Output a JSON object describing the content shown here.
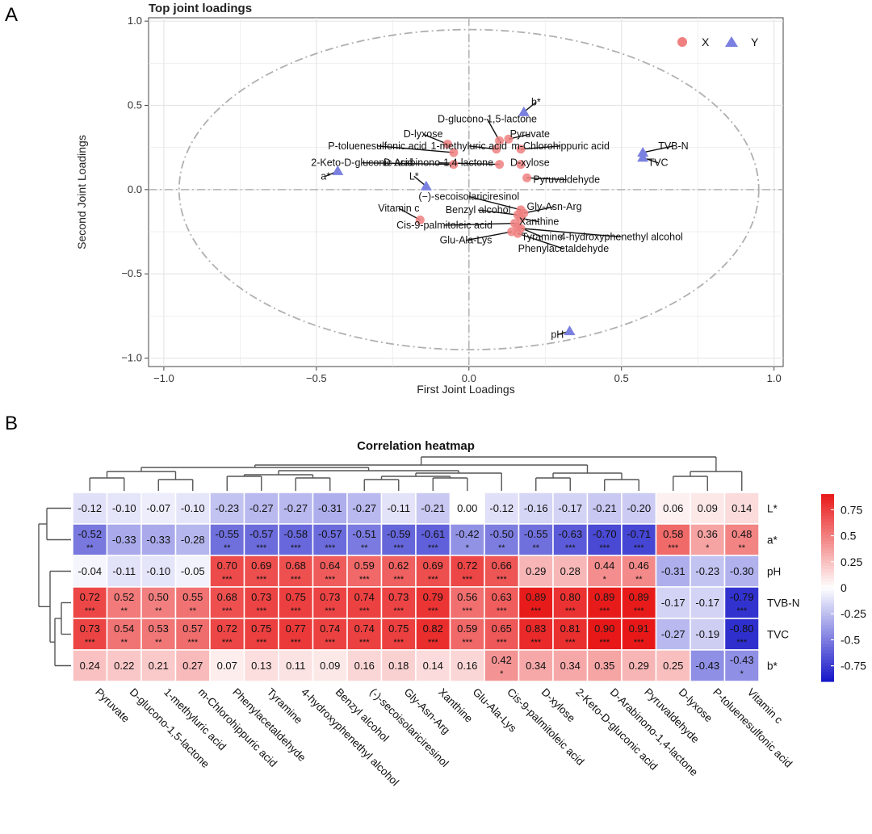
{
  "panels": {
    "a_label": "A",
    "b_label": "B"
  },
  "chart_data": [
    {
      "type": "scatter",
      "title": "Top joint loadings",
      "xlabel": "First Joint Loadings",
      "ylabel": "Second Joint Loadings",
      "xlim": [
        -1.05,
        1.03
      ],
      "ylim": [
        -1.05,
        1.02
      ],
      "xticks": [
        -1.0,
        -0.5,
        0.0,
        0.5,
        1.0
      ],
      "xtick_labels": [
        "−1.0",
        "−0.5",
        "0.0",
        "0.5",
        "1.0"
      ],
      "yticks": [
        -1.0,
        -0.5,
        0.0,
        0.5,
        1.0
      ],
      "ytick_labels": [
        "−1.0",
        "−0.5",
        "0.0",
        "0.5",
        "1.0"
      ],
      "grid": true,
      "legend": {
        "position": "top-right",
        "entries": [
          {
            "label": "X",
            "color": "#f08080",
            "marker": "circle"
          },
          {
            "label": "Y",
            "color": "#7a80e0",
            "marker": "triangle"
          }
        ]
      },
      "reference_circle_radius": 0.95,
      "series": [
        {
          "name": "X",
          "color": "#f08080",
          "marker": "circle",
          "points": [
            {
              "label": "D-glucono-1,5-lactone",
              "x": 0.1,
              "y": 0.29,
              "lx": 0.06,
              "ly": 0.4
            },
            {
              "label": "D-lyxose",
              "x": -0.07,
              "y": 0.27,
              "lx": -0.15,
              "ly": 0.31
            },
            {
              "label": "Pyruvate",
              "x": 0.13,
              "y": 0.3,
              "lx": 0.2,
              "ly": 0.31
            },
            {
              "label": "P-toluenesulfonic acid",
              "x": -0.05,
              "y": 0.22,
              "lx": -0.3,
              "ly": 0.24
            },
            {
              "label": "1-methyluric acid",
              "x": 0.09,
              "y": 0.24,
              "lx": 0.0,
              "ly": 0.24
            },
            {
              "label": "m-Chlorohippuric acid",
              "x": 0.17,
              "y": 0.24,
              "lx": 0.3,
              "ly": 0.24
            },
            {
              "label": "2-Keto-D-gluconic acid",
              "x": -0.05,
              "y": 0.15,
              "lx": -0.35,
              "ly": 0.14
            },
            {
              "label": "D-Arabinono-1,4-lactone",
              "x": 0.1,
              "y": 0.15,
              "lx": -0.1,
              "ly": 0.14
            },
            {
              "label": "D-xylose",
              "x": 0.17,
              "y": 0.15,
              "lx": 0.2,
              "ly": 0.14
            },
            {
              "label": "Pyruvaldehyde",
              "x": 0.19,
              "y": 0.07,
              "lx": 0.32,
              "ly": 0.04
            },
            {
              "label": "(−)-secoisolariciresinol",
              "x": 0.17,
              "y": -0.12,
              "lx": 0.0,
              "ly": -0.06
            },
            {
              "label": "Gly-Asn-Arg",
              "x": 0.18,
              "y": -0.14,
              "lx": 0.28,
              "ly": -0.12
            },
            {
              "label": "Vitamin c",
              "x": -0.16,
              "y": -0.18,
              "lx": -0.23,
              "ly": -0.13
            },
            {
              "label": "Benzyl alcohol",
              "x": 0.16,
              "y": -0.15,
              "lx": 0.03,
              "ly": -0.14
            },
            {
              "label": "Xanthine",
              "x": 0.17,
              "y": -0.17,
              "lx": 0.23,
              "ly": -0.21
            },
            {
              "label": "Cis-9-palmitoleic acid",
              "x": 0.15,
              "y": -0.2,
              "lx": -0.08,
              "ly": -0.23
            },
            {
              "label": "Tyramine",
              "x": 0.16,
              "y": -0.22,
              "lx": 0.24,
              "ly": -0.3
            },
            {
              "label": "4-hydroxyphenethyl alcohol",
              "x": 0.17,
              "y": -0.23,
              "lx": 0.5,
              "ly": -0.3
            },
            {
              "label": "Glu-Ala-Lys",
              "x": 0.14,
              "y": -0.25,
              "lx": -0.01,
              "ly": -0.32
            },
            {
              "label": "Phenylacetaldehyde",
              "x": 0.16,
              "y": -0.26,
              "lx": 0.31,
              "ly": -0.37
            }
          ]
        },
        {
          "name": "Y",
          "color": "#7a80e0",
          "marker": "triangle",
          "points": [
            {
              "label": "b*",
              "x": 0.18,
              "y": 0.46,
              "lx": 0.22,
              "ly": 0.5
            },
            {
              "label": "TVB-N",
              "x": 0.57,
              "y": 0.22,
              "lx": 0.67,
              "ly": 0.24
            },
            {
              "label": "TVC",
              "x": 0.57,
              "y": 0.19,
              "lx": 0.62,
              "ly": 0.14
            },
            {
              "label": "a*",
              "x": -0.43,
              "y": 0.11,
              "lx": -0.47,
              "ly": 0.06
            },
            {
              "label": "L*",
              "x": -0.14,
              "y": 0.02,
              "lx": -0.18,
              "ly": 0.06
            },
            {
              "label": "pH",
              "x": 0.33,
              "y": -0.84,
              "lx": 0.29,
              "ly": -0.88
            }
          ]
        }
      ]
    },
    {
      "type": "heatmap",
      "title": "Correlation heatmap",
      "rows": [
        "L*",
        "a*",
        "pH",
        "TVB-N",
        "TVC",
        "b*"
      ],
      "columns": [
        "Pyruvate",
        "D-glucono-1,5-lactone",
        "1-methyluric acid",
        "m-Chlorohippuric acid",
        "Phenylacetaldehyde",
        "Tyramine",
        "4-hydroxyphenethyl alcohol",
        "Benzyl alcohol",
        "(-)-secoisolariciresinol",
        "Gly-Asn-Arg",
        "Xanthine",
        "Glu-Ala-Lys",
        "Cis-9-palmitoleic acid",
        "D-xylose",
        "2-Keto-D-gluconic acid",
        "D-Arabinono-1,4-lactone",
        "Pyruvaldehyde",
        "D-lyxose",
        "P-toluenesulfonic acid",
        "Vitamin c"
      ],
      "values": [
        [
          -0.12,
          -0.1,
          -0.07,
          -0.1,
          -0.23,
          -0.27,
          -0.27,
          -0.31,
          -0.27,
          -0.11,
          -0.21,
          0.0,
          -0.12,
          -0.16,
          -0.17,
          -0.21,
          -0.2,
          0.06,
          0.09,
          0.14
        ],
        [
          -0.52,
          -0.33,
          -0.33,
          -0.28,
          -0.55,
          -0.57,
          -0.58,
          -0.57,
          -0.51,
          -0.59,
          -0.61,
          -0.42,
          -0.5,
          -0.55,
          -0.63,
          -0.7,
          -0.71,
          0.58,
          0.36,
          0.48
        ],
        [
          -0.04,
          -0.11,
          -0.1,
          -0.05,
          0.7,
          0.69,
          0.68,
          0.64,
          0.59,
          0.62,
          0.69,
          0.72,
          0.66,
          0.29,
          0.28,
          0.44,
          0.46,
          -0.31,
          -0.23,
          -0.3
        ],
        [
          0.72,
          0.52,
          0.5,
          0.55,
          0.68,
          0.73,
          0.75,
          0.73,
          0.74,
          0.73,
          0.79,
          0.56,
          0.63,
          0.89,
          0.8,
          0.89,
          0.89,
          -0.17,
          -0.17,
          -0.79
        ],
        [
          0.73,
          0.54,
          0.53,
          0.57,
          0.72,
          0.75,
          0.77,
          0.74,
          0.74,
          0.75,
          0.82,
          0.59,
          0.65,
          0.83,
          0.81,
          0.9,
          0.91,
          -0.27,
          -0.19,
          -0.8
        ],
        [
          0.24,
          0.22,
          0.21,
          0.27,
          0.07,
          0.13,
          0.11,
          0.09,
          0.16,
          0.18,
          0.14,
          0.16,
          0.42,
          0.34,
          0.34,
          0.35,
          0.29,
          0.25,
          -0.43,
          -0.43
        ]
      ],
      "value_labels": [
        [
          "-0.12",
          "-0.10",
          "-0.07",
          "-0.10",
          "-0.23",
          "-0.27",
          "-0.27",
          "-0.31",
          "-0.27",
          "-0.11",
          "-0.21",
          "0.00",
          "-0.12",
          "-0.16",
          "-0.17",
          "-0.21",
          "-0.20",
          "0.06",
          "0.09",
          "0.14"
        ],
        [
          "-0.52",
          "-0.33",
          "-0.33",
          "-0.28",
          "-0.55",
          "-0.57",
          "-0.58",
          "-0.57",
          "-0.51",
          "-0.59",
          "-0.61",
          "-0.42",
          "-0.50",
          "-0.55",
          "-0.63",
          "-0.70",
          "-0.71",
          "0.58",
          "0.36",
          "0.48"
        ],
        [
          "-0.04",
          "-0.11",
          "-0.10",
          "-0.05",
          "0.70",
          "0.69",
          "0.68",
          "0.64",
          "0.59",
          "0.62",
          "0.69",
          "0.72",
          "0.66",
          "0.29",
          "0.28",
          "0.44",
          "0.46",
          "-0.31",
          "-0.23",
          "-0.30"
        ],
        [
          "0.72",
          "0.52",
          "0.50",
          "0.55",
          "0.68",
          "0.73",
          "0.75",
          "0.73",
          "0.74",
          "0.73",
          "0.79",
          "0.56",
          "0.63",
          "0.89",
          "0.80",
          "0.89",
          "0.89",
          "-0.17",
          "-0.17",
          "-0.79"
        ],
        [
          "0.73",
          "0.54",
          "0.53",
          "0.57",
          "0.72",
          "0.75",
          "0.77",
          "0.74",
          "0.74",
          "0.75",
          "0.82",
          "0.59",
          "0.65",
          "0.83",
          "0.81",
          "0.90",
          "0.91",
          "-0.27",
          "-0.19",
          "-0.80"
        ],
        [
          "0.24",
          "0.22",
          "0.21",
          "0.27",
          "0.07",
          "0.13",
          "0.11",
          "0.09",
          "0.16",
          "0.18",
          "0.14",
          "0.16",
          "0.42",
          "0.34",
          "0.34",
          "0.35",
          "0.29",
          "0.25",
          "-0.43",
          "-0.43"
        ]
      ],
      "significance": [
        [
          "",
          "",
          "",
          "",
          "",
          "",
          "",
          "",
          "",
          "",
          "",
          "",
          "",
          "",
          "",
          "",
          "",
          "",
          "",
          ""
        ],
        [
          "**",
          "",
          "",
          "",
          "**",
          "***",
          "***",
          "***",
          "**",
          "***",
          "***",
          "*",
          "**",
          "**",
          "***",
          "***",
          "***",
          "***",
          "*",
          "**"
        ],
        [
          "",
          "",
          "",
          "",
          "***",
          "***",
          "***",
          "***",
          "***",
          "***",
          "***",
          "***",
          "***",
          "",
          "",
          "*",
          "**",
          "",
          "",
          ""
        ],
        [
          "***",
          "**",
          "**",
          "**",
          "***",
          "***",
          "***",
          "***",
          "***",
          "***",
          "***",
          "***",
          "***",
          "***",
          "***",
          "***",
          "***",
          "",
          "",
          "***"
        ],
        [
          "***",
          "**",
          "**",
          "***",
          "***",
          "***",
          "***",
          "***",
          "***",
          "***",
          "***",
          "***",
          "***",
          "***",
          "***",
          "***",
          "***",
          "",
          "",
          "***"
        ],
        [
          "",
          "",
          "",
          "",
          "",
          "",
          "",
          "",
          "",
          "",
          "",
          "",
          "*",
          "",
          "",
          "",
          "",
          "",
          "",
          "*"
        ]
      ],
      "colorscale": {
        "min": -0.9,
        "max": 0.9,
        "low": "#1515c8",
        "mid": "#ffffff",
        "high": "#e81818",
        "ticks": [
          0.75,
          0.5,
          0.25,
          0,
          -0.25,
          -0.5,
          -0.75
        ],
        "tick_labels": [
          "0.75",
          "0.5",
          "0.25",
          "0",
          "-0.25",
          "-0.5",
          "-0.75"
        ]
      }
    }
  ]
}
